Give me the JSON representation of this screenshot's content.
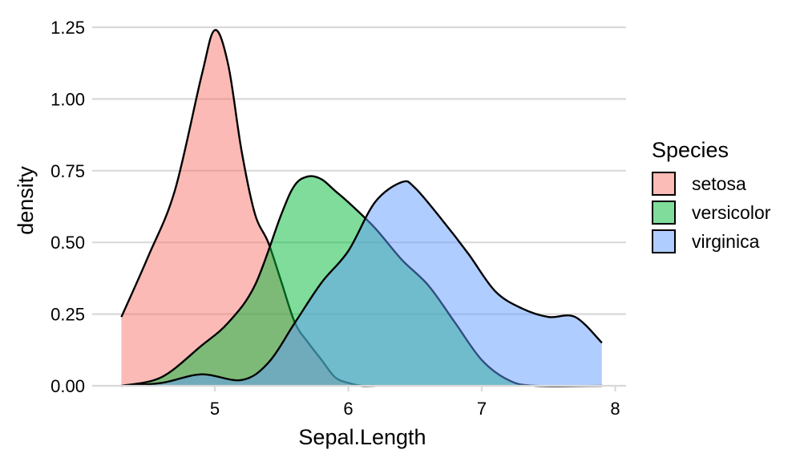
{
  "chart_data": {
    "type": "area",
    "subtype": "density",
    "title": "",
    "xlabel": "Sepal.Length",
    "ylabel": "density",
    "xlim": [
      4.3,
      7.9
    ],
    "ylim": [
      0,
      1.25
    ],
    "x_ticks": [
      "5",
      "6",
      "7",
      "8"
    ],
    "y_ticks": [
      "0.00",
      "0.25",
      "0.50",
      "0.75",
      "1.00",
      "1.25"
    ],
    "grid": "horizontal major only",
    "legend": {
      "title": "Species",
      "position": "right"
    },
    "fill_alpha": 0.5,
    "series": [
      {
        "name": "setosa",
        "color": "#F8766D",
        "x": [
          4.3,
          4.5,
          4.7,
          4.9,
          5.0,
          5.1,
          5.2,
          5.3,
          5.4,
          5.5,
          5.6,
          5.7,
          5.8,
          5.9,
          6.0,
          6.1,
          6.2
        ],
        "values": [
          0.24,
          0.45,
          0.68,
          1.08,
          1.24,
          1.12,
          0.82,
          0.6,
          0.5,
          0.36,
          0.22,
          0.15,
          0.09,
          0.03,
          0.01,
          0.0,
          0.0
        ]
      },
      {
        "name": "versicolor",
        "color": "#00BA38",
        "x": [
          4.3,
          4.6,
          4.9,
          5.1,
          5.3,
          5.5,
          5.6,
          5.7,
          5.8,
          5.9,
          6.0,
          6.2,
          6.4,
          6.6,
          6.8,
          7.0,
          7.2,
          7.4,
          7.9
        ],
        "values": [
          0.0,
          0.03,
          0.14,
          0.22,
          0.35,
          0.6,
          0.7,
          0.73,
          0.72,
          0.68,
          0.64,
          0.55,
          0.44,
          0.35,
          0.22,
          0.09,
          0.02,
          0.0,
          0.0
        ]
      },
      {
        "name": "virginica",
        "color": "#619CFF",
        "x": [
          4.3,
          4.6,
          4.9,
          5.2,
          5.4,
          5.6,
          5.8,
          6.0,
          6.2,
          6.4,
          6.5,
          6.7,
          6.9,
          7.1,
          7.3,
          7.5,
          7.7,
          7.9
        ],
        "values": [
          0.0,
          0.01,
          0.04,
          0.02,
          0.08,
          0.22,
          0.36,
          0.47,
          0.64,
          0.71,
          0.69,
          0.58,
          0.46,
          0.33,
          0.27,
          0.24,
          0.24,
          0.15
        ]
      }
    ]
  },
  "legend": {
    "title": "Species",
    "items": [
      {
        "label": "setosa",
        "color": "#F8766D"
      },
      {
        "label": "versicolor",
        "color": "#00BA38"
      },
      {
        "label": "virginica",
        "color": "#619CFF"
      }
    ]
  }
}
